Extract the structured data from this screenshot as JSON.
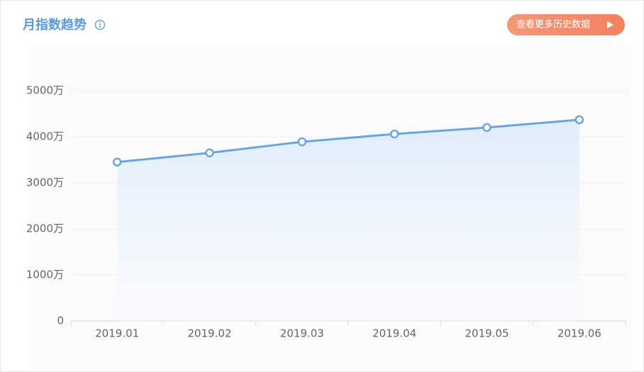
{
  "chart_data": {
    "type": "line",
    "title": "月指数趋势",
    "button": "查看更多历史数据",
    "categories": [
      "2019.01",
      "2019.02",
      "2019.03",
      "2019.04",
      "2019.05",
      "2019.06"
    ],
    "values": [
      3450,
      3650,
      3890,
      4060,
      4200,
      4370
    ],
    "color": "#6aa5e2",
    "ylim": [
      0,
      5000
    ],
    "yticks": [
      0,
      {
        "value": 1000,
        "label": "1000万"
      },
      {
        "value": 2000,
        "label": "2000万"
      },
      {
        "value": 3000,
        "label": "3000万"
      },
      {
        "value": 4000,
        "label": "4000万"
      },
      {
        "value": 5000,
        "label": "5000万"
      }
    ],
    "grid": true,
    "area": true
  }
}
